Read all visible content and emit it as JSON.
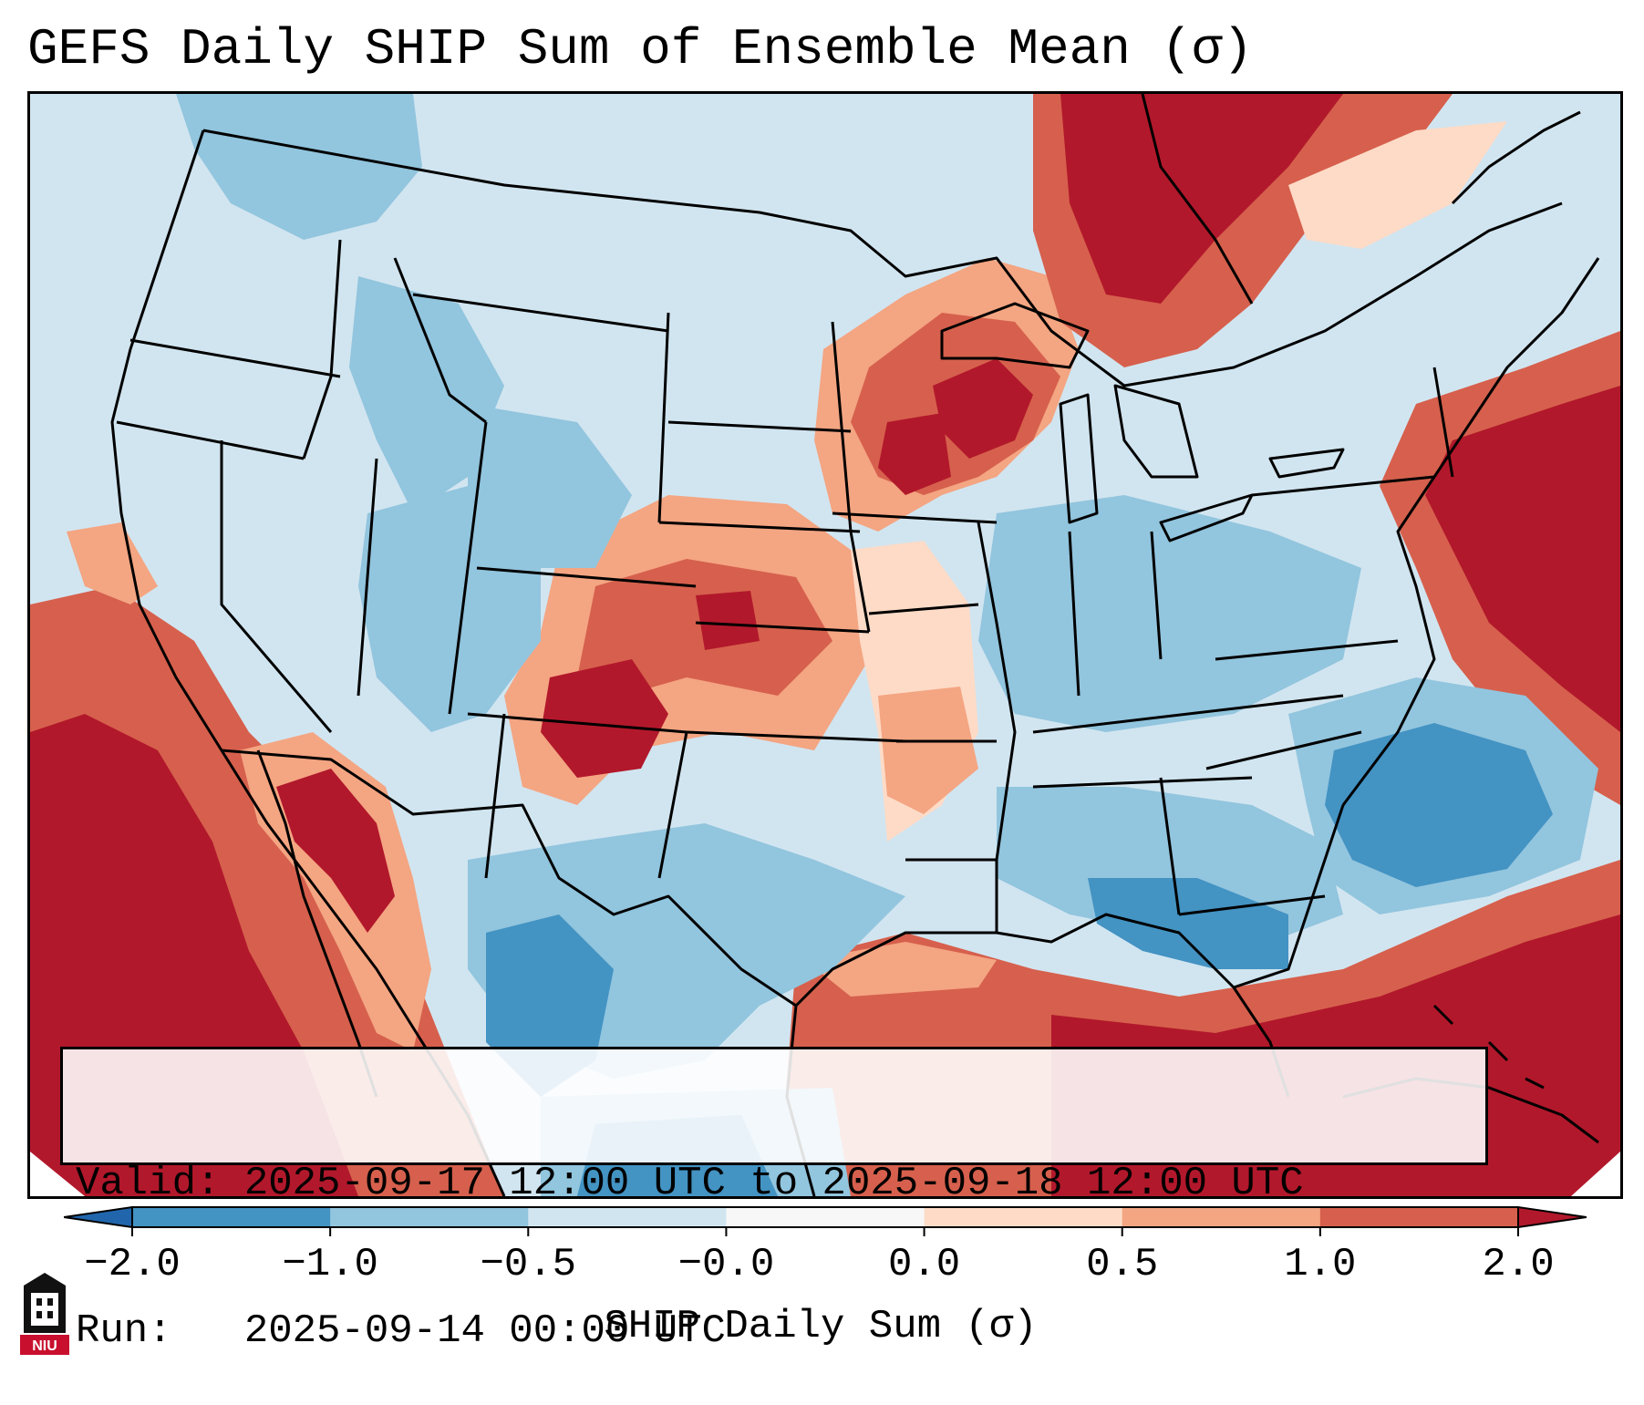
{
  "title": "GEFS Daily SHIP Sum of Ensemble Mean (σ)",
  "info": {
    "valid_label": "Valid:",
    "valid_value": "2025-09-17 12:00 UTC to 2025-09-18 12:00 UTC",
    "run_label": "Run:",
    "run_value": "2025-09-14 00:00 UTC"
  },
  "colorbar": {
    "label": "SHIP Daily Sum (σ)",
    "ticks": [
      "−2.0",
      "−1.0",
      "−0.5",
      "−0.0",
      "0.0",
      "0.5",
      "1.0",
      "2.0"
    ],
    "colors": {
      "under": "#2166ac",
      "bin1": "#4393c3",
      "bin2": "#92c5de",
      "bin3": "#d1e5f0",
      "bin4": "#f7f7f7",
      "bin5": "#fddbc7",
      "bin6": "#f4a582",
      "bin7": "#d6604d",
      "over": "#b2182b"
    }
  },
  "logo": {
    "text": "NIU",
    "icon": "niu-seal-icon"
  }
}
